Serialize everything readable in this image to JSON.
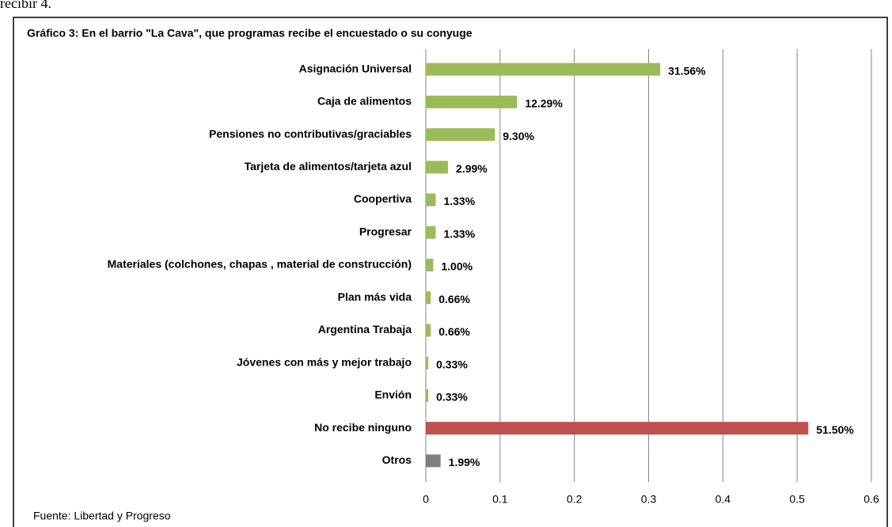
{
  "context_text": "recibir 4.",
  "chart_data": {
    "type": "bar",
    "orientation": "horizontal",
    "title": "Gráfico 3: En el barrio \"La Cava\", que programas recibe el encuestado o su conyuge",
    "source": "Fuente: Libertad y Progreso",
    "categories": [
      "Asignación  Universal",
      "Caja de alimentos",
      "Pensiones no contributivas/graciables",
      "Tarjeta de alimentos/tarjeta azul",
      "Coopertiva",
      "Progresar",
      "Materiales (colchones,  chapas  , material de construcción)",
      "Plan más vida",
      "Argentina Trabaja",
      "Jóvenes con más y mejor trabajo",
      "Envión",
      "No recibe ninguno",
      "Otros"
    ],
    "values": [
      0.3156,
      0.1229,
      0.093,
      0.0299,
      0.0133,
      0.0133,
      0.01,
      0.0066,
      0.0066,
      0.0033,
      0.0033,
      0.515,
      0.0199
    ],
    "value_labels": [
      "31.56%",
      "12.29%",
      "9.30%",
      "2.99%",
      "1.33%",
      "1.33%",
      "1.00%",
      "0.66%",
      "0.66%",
      "0.33%",
      "0.33%",
      "51.50%",
      "1.99%"
    ],
    "colors": [
      "#9bbb59",
      "#9bbb59",
      "#9bbb59",
      "#9bbb59",
      "#9bbb59",
      "#9bbb59",
      "#9bbb59",
      "#9bbb59",
      "#9bbb59",
      "#9bbb59",
      "#9bbb59",
      "#c0504d",
      "#7f7f7f"
    ],
    "xlim": [
      0,
      0.6
    ],
    "xticks": [
      0,
      0.1,
      0.2,
      0.3,
      0.4,
      0.5,
      0.6
    ],
    "grid": true
  }
}
